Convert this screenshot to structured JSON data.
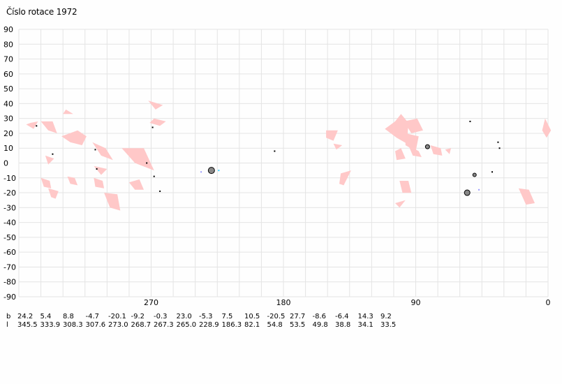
{
  "title": "Číslo rotace  1972",
  "axes": {
    "y_ticks": [
      "90",
      "80",
      "70",
      "60",
      "50",
      "40",
      "30",
      "20",
      "10",
      "0",
      "-10",
      "-20",
      "-30",
      "-40",
      "-50",
      "-60",
      "-70",
      "-80",
      "-90"
    ],
    "x_ticks": [
      "270",
      "180",
      "90",
      "0"
    ]
  },
  "chart_data": {
    "type": "scatter",
    "title": "Číslo rotace  1972",
    "xlabel": "",
    "ylabel": "",
    "xlim": [
      360,
      0
    ],
    "ylim": [
      -90,
      90
    ],
    "grid": true,
    "colors": {
      "region": "#ffc8c8",
      "spot": "#000000",
      "grid": "#e4e4e4",
      "marker_fill": "#888888"
    },
    "regions": [
      {
        "points": [
          [
            355,
            26
          ],
          [
            350,
            23
          ],
          [
            347,
            28
          ],
          [
            352,
            27
          ]
        ]
      },
      {
        "points": [
          [
            345,
            28
          ],
          [
            340,
            22
          ],
          [
            334,
            20
          ],
          [
            337,
            28
          ]
        ]
      },
      {
        "points": [
          [
            328,
            36
          ],
          [
            323,
            33
          ],
          [
            330,
            33
          ]
        ]
      },
      {
        "points": [
          [
            331,
            18
          ],
          [
            325,
            14
          ],
          [
            317,
            12
          ],
          [
            314,
            18
          ],
          [
            320,
            22
          ]
        ]
      },
      {
        "points": [
          [
            310,
            14
          ],
          [
            301,
            10
          ],
          [
            296,
            2
          ],
          [
            304,
            5
          ]
        ]
      },
      {
        "points": [
          [
            290,
            10
          ],
          [
            281,
            0
          ],
          [
            268,
            -5
          ],
          [
            275,
            10
          ]
        ]
      },
      {
        "points": [
          [
            271,
            27
          ],
          [
            264,
            25
          ],
          [
            260,
            28
          ],
          [
            268,
            30
          ]
        ]
      },
      {
        "points": [
          [
            272,
            42
          ],
          [
            267,
            36
          ],
          [
            262,
            39
          ]
        ]
      },
      {
        "points": [
          [
            309,
            -2
          ],
          [
            300,
            -4
          ],
          [
            304,
            -8
          ]
        ]
      },
      {
        "points": [
          [
            342,
            5
          ],
          [
            336,
            3
          ],
          [
            340,
            -1
          ]
        ]
      },
      {
        "points": [
          [
            345,
            -10
          ],
          [
            339,
            -12
          ],
          [
            338,
            -17
          ],
          [
            343,
            -16
          ]
        ]
      },
      {
        "points": [
          [
            340,
            -17
          ],
          [
            333,
            -19
          ],
          [
            335,
            -24
          ],
          [
            338,
            -23
          ]
        ]
      },
      {
        "points": [
          [
            327,
            -9
          ],
          [
            322,
            -10
          ],
          [
            320,
            -15
          ],
          [
            325,
            -14
          ]
        ]
      },
      {
        "points": [
          [
            309,
            -10
          ],
          [
            303,
            -12
          ],
          [
            302,
            -17
          ],
          [
            308,
            -16
          ]
        ]
      },
      {
        "points": [
          [
            302,
            -20
          ],
          [
            293,
            -21
          ],
          [
            291,
            -32
          ],
          [
            298,
            -30
          ]
        ]
      },
      {
        "points": [
          [
            285,
            -13
          ],
          [
            278,
            -11
          ],
          [
            275,
            -18
          ],
          [
            281,
            -18
          ]
        ]
      },
      {
        "points": [
          [
            151,
            22
          ],
          [
            143,
            22
          ],
          [
            146,
            15
          ],
          [
            151,
            17
          ]
        ]
      },
      {
        "points": [
          [
            146,
            13
          ],
          [
            140,
            12
          ],
          [
            144,
            9
          ]
        ]
      },
      {
        "points": [
          [
            141,
            -7
          ],
          [
            134,
            -5
          ],
          [
            139,
            -15
          ],
          [
            142,
            -14
          ]
        ]
      },
      {
        "points": [
          [
            111,
            23
          ],
          [
            104,
            28
          ],
          [
            100,
            33
          ],
          [
            95,
            27
          ],
          [
            96,
            13
          ],
          [
            103,
            17
          ]
        ]
      },
      {
        "points": [
          [
            98,
            28
          ],
          [
            89,
            30
          ],
          [
            85,
            22
          ],
          [
            93,
            20
          ]
        ]
      },
      {
        "points": [
          [
            97,
            20
          ],
          [
            88,
            18
          ],
          [
            90,
            8
          ],
          [
            97,
            12
          ]
        ]
      },
      {
        "points": [
          [
            104,
            8
          ],
          [
            100,
            10
          ],
          [
            97,
            3
          ],
          [
            103,
            2
          ]
        ]
      },
      {
        "points": [
          [
            95,
            12
          ],
          [
            88,
            8
          ],
          [
            86,
            4
          ],
          [
            92,
            5
          ]
        ]
      },
      {
        "points": [
          [
            80,
            12
          ],
          [
            73,
            10
          ],
          [
            72,
            5
          ],
          [
            78,
            6
          ]
        ]
      },
      {
        "points": [
          [
            70,
            9
          ],
          [
            66,
            10
          ],
          [
            67,
            6
          ]
        ]
      },
      {
        "points": [
          [
            101,
            -12
          ],
          [
            95,
            -12
          ],
          [
            93,
            -20
          ],
          [
            99,
            -20
          ]
        ]
      },
      {
        "points": [
          [
            104,
            -27
          ],
          [
            97,
            -25
          ],
          [
            101,
            -30
          ]
        ]
      },
      {
        "points": [
          [
            2,
            30
          ],
          [
            -2,
            22
          ],
          [
            1,
            17
          ],
          [
            4,
            22
          ]
        ]
      },
      {
        "points": [
          [
            20,
            -17
          ],
          [
            13,
            -18
          ],
          [
            9,
            -27
          ],
          [
            15,
            -28
          ]
        ]
      }
    ],
    "spots": [
      {
        "x": 348,
        "y": 25,
        "size": 2
      },
      {
        "x": 337,
        "y": 6,
        "size": 2
      },
      {
        "x": 308,
        "y": 9,
        "size": 2
      },
      {
        "x": 307,
        "y": -4,
        "size": 2
      },
      {
        "x": 273,
        "y": 0,
        "size": 2
      },
      {
        "x": 269,
        "y": 24,
        "size": 2
      },
      {
        "x": 268,
        "y": -9,
        "size": 2
      },
      {
        "x": 264,
        "y": -19,
        "size": 2
      },
      {
        "x": 229,
        "y": -5,
        "size": 7
      },
      {
        "x": 186,
        "y": 8,
        "size": 2
      },
      {
        "x": 82,
        "y": 11,
        "size": 4
      },
      {
        "x": 55,
        "y": -20,
        "size": 6
      },
      {
        "x": 53,
        "y": 28,
        "size": 2
      },
      {
        "x": 50,
        "y": -8,
        "size": 3
      },
      {
        "x": 38,
        "y": -6,
        "size": 2
      },
      {
        "x": 34,
        "y": 14,
        "size": 2
      },
      {
        "x": 33,
        "y": 10,
        "size": 2
      }
    ],
    "faint_points": [
      {
        "x": 236,
        "y": -6,
        "color": "#9999ff"
      },
      {
        "x": 224,
        "y": -5,
        "color": "#33ccff"
      },
      {
        "x": 47,
        "y": -18,
        "color": "#9999ff"
      }
    ]
  },
  "table": {
    "b_label": "b",
    "l_label": "l",
    "b": [
      "24.2",
      "5.4",
      "8.8",
      "-4.7",
      "-20.1",
      "-9.2",
      "-0.3",
      "23.0",
      "-5.3",
      "7.5",
      "10.5",
      "-20.5",
      "27.7",
      "-8.6",
      "-6.4",
      "14.3",
      "9.2"
    ],
    "l": [
      "345.5",
      "333.9",
      "308.3",
      "307.6",
      "273.0",
      "268.7",
      "267.3",
      "265.0",
      "228.9",
      "186.3",
      "82.1",
      "54.8",
      "53.5",
      "49.8",
      "38.8",
      "34.1",
      "33.5"
    ]
  }
}
